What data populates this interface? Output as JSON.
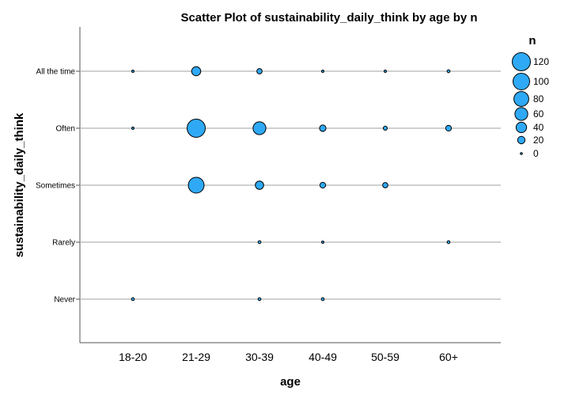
{
  "chart_data": {
    "type": "scatter",
    "title": "Scatter Plot of sustainability_daily_think by age by n",
    "xlabel": "age",
    "ylabel": "sustainability_daily_think",
    "x_categories": [
      "18-20",
      "21-29",
      "30-39",
      "40-49",
      "50-59",
      "60+"
    ],
    "y_categories": [
      "Never",
      "Rarely",
      "Sometimes",
      "Often",
      "All the time"
    ],
    "size_variable": "n",
    "points": [
      {
        "x": "18-20",
        "y": "All the time",
        "n": 2
      },
      {
        "x": "21-29",
        "y": "All the time",
        "n": 30
      },
      {
        "x": "30-39",
        "y": "All the time",
        "n": 10
      },
      {
        "x": "40-49",
        "y": "All the time",
        "n": 2
      },
      {
        "x": "50-59",
        "y": "All the time",
        "n": 2
      },
      {
        "x": "60+",
        "y": "All the time",
        "n": 3
      },
      {
        "x": "18-20",
        "y": "Often",
        "n": 2
      },
      {
        "x": "21-29",
        "y": "Often",
        "n": 120
      },
      {
        "x": "30-39",
        "y": "Often",
        "n": 60
      },
      {
        "x": "40-49",
        "y": "Often",
        "n": 15
      },
      {
        "x": "50-59",
        "y": "Often",
        "n": 6
      },
      {
        "x": "60+",
        "y": "Often",
        "n": 12
      },
      {
        "x": "21-29",
        "y": "Sometimes",
        "n": 90
      },
      {
        "x": "30-39",
        "y": "Sometimes",
        "n": 25
      },
      {
        "x": "40-49",
        "y": "Sometimes",
        "n": 12
      },
      {
        "x": "50-59",
        "y": "Sometimes",
        "n": 10
      },
      {
        "x": "30-39",
        "y": "Rarely",
        "n": 3
      },
      {
        "x": "40-49",
        "y": "Rarely",
        "n": 2
      },
      {
        "x": "60+",
        "y": "Rarely",
        "n": 3
      },
      {
        "x": "18-20",
        "y": "Never",
        "n": 3
      },
      {
        "x": "30-39",
        "y": "Never",
        "n": 3
      },
      {
        "x": "40-49",
        "y": "Never",
        "n": 3
      }
    ],
    "legend": {
      "title": "n",
      "values": [
        120,
        100,
        80,
        60,
        40,
        20,
        0
      ],
      "placement": "right"
    },
    "grid": "horizontal lines at each category",
    "colors": {
      "marker_fill": "#2fa9f5",
      "marker_stroke": "#000000",
      "gridline": "#b4b4b4",
      "axis": "#555555"
    }
  }
}
